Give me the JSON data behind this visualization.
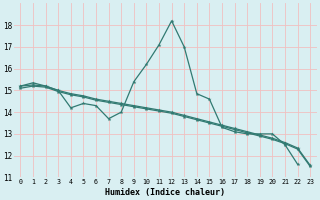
{
  "xlabel": "Humidex (Indice chaleur)",
  "x_ticks": [
    0,
    1,
    2,
    3,
    4,
    5,
    6,
    7,
    8,
    9,
    10,
    11,
    12,
    13,
    14,
    15,
    16,
    17,
    18,
    19,
    20,
    21,
    22,
    23
  ],
  "xlim": [
    -0.5,
    23.5
  ],
  "ylim": [
    11,
    19.0
  ],
  "y_ticks": [
    11,
    12,
    13,
    14,
    15,
    16,
    17,
    18
  ],
  "bg_color": "#d9eff2",
  "grid_color": "#f0c0c0",
  "line_color": "#317a72",
  "line1_x": [
    0,
    1,
    2,
    3,
    4,
    5,
    6,
    7,
    8,
    9,
    10,
    11,
    12,
    13,
    14,
    15,
    16,
    17,
    18,
    19,
    20,
    21,
    22
  ],
  "line1_y": [
    15.2,
    15.35,
    15.2,
    15.0,
    14.2,
    14.4,
    14.3,
    13.7,
    14.0,
    15.4,
    16.2,
    17.1,
    18.2,
    17.0,
    14.85,
    14.6,
    13.3,
    13.1,
    13.0,
    13.0,
    13.0,
    12.5,
    11.6
  ],
  "line2_x": [
    0,
    1,
    2,
    3,
    4,
    5,
    6,
    7,
    8,
    9,
    10,
    11,
    12,
    13,
    14,
    15,
    16,
    17,
    18,
    19,
    20,
    21,
    22,
    23
  ],
  "line2_y": [
    15.2,
    15.25,
    15.2,
    15.0,
    14.85,
    14.75,
    14.6,
    14.5,
    14.4,
    14.3,
    14.2,
    14.1,
    14.0,
    13.85,
    13.7,
    13.55,
    13.4,
    13.25,
    13.1,
    12.95,
    12.8,
    12.6,
    12.35,
    11.55
  ],
  "line3_x": [
    0,
    1,
    2,
    3,
    4,
    5,
    6,
    7,
    8,
    9,
    10,
    11,
    12,
    13,
    14,
    15,
    16,
    17,
    18,
    19,
    20,
    21,
    22,
    23
  ],
  "line3_y": [
    15.1,
    15.2,
    15.15,
    14.95,
    14.8,
    14.7,
    14.55,
    14.45,
    14.35,
    14.25,
    14.15,
    14.05,
    13.95,
    13.8,
    13.65,
    13.5,
    13.35,
    13.2,
    13.05,
    12.9,
    12.75,
    12.55,
    12.3,
    11.5
  ]
}
